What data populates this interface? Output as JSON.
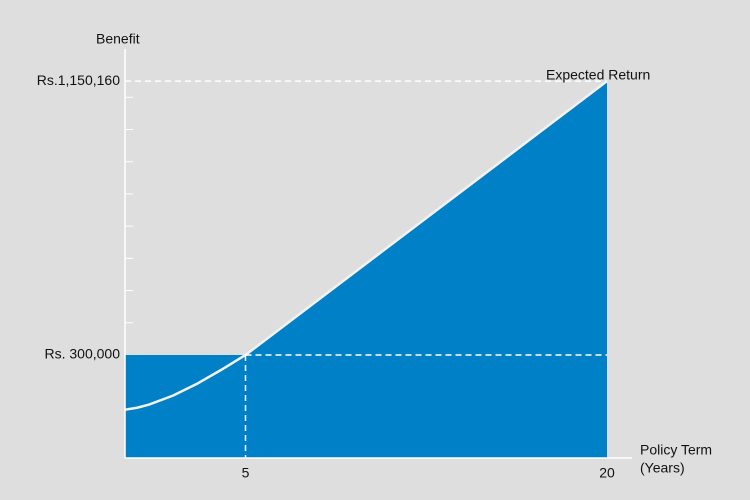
{
  "chart_data": {
    "type": "area",
    "y_label": "Benefit",
    "x_label": [
      "Policy Term",
      "(Years)"
    ],
    "annotation": "Expected Return",
    "x": [
      0,
      0.5,
      1,
      2,
      3,
      4,
      5,
      20
    ],
    "values": [
      130000,
      136000,
      146000,
      174000,
      211000,
      254000,
      300000,
      1150160
    ],
    "base_level": {
      "x": [
        0,
        5
      ],
      "values": [
        300000,
        300000
      ]
    },
    "xlim": [
      0,
      20
    ],
    "xticks": [
      5,
      20
    ],
    "ylim": [
      -20000,
      1250000
    ],
    "yticks": [
      {
        "value": 300000,
        "label": "Rs. 300,000"
      },
      {
        "value": 1150160,
        "label": "Rs.1,150,160"
      }
    ],
    "minor_yticks": [
      400000,
      500000,
      600000,
      700000,
      800000,
      900000,
      1000000,
      1100000
    ],
    "fill_color": "#0080c6",
    "line_color": "#f2f2f2",
    "background": "#dedede"
  }
}
